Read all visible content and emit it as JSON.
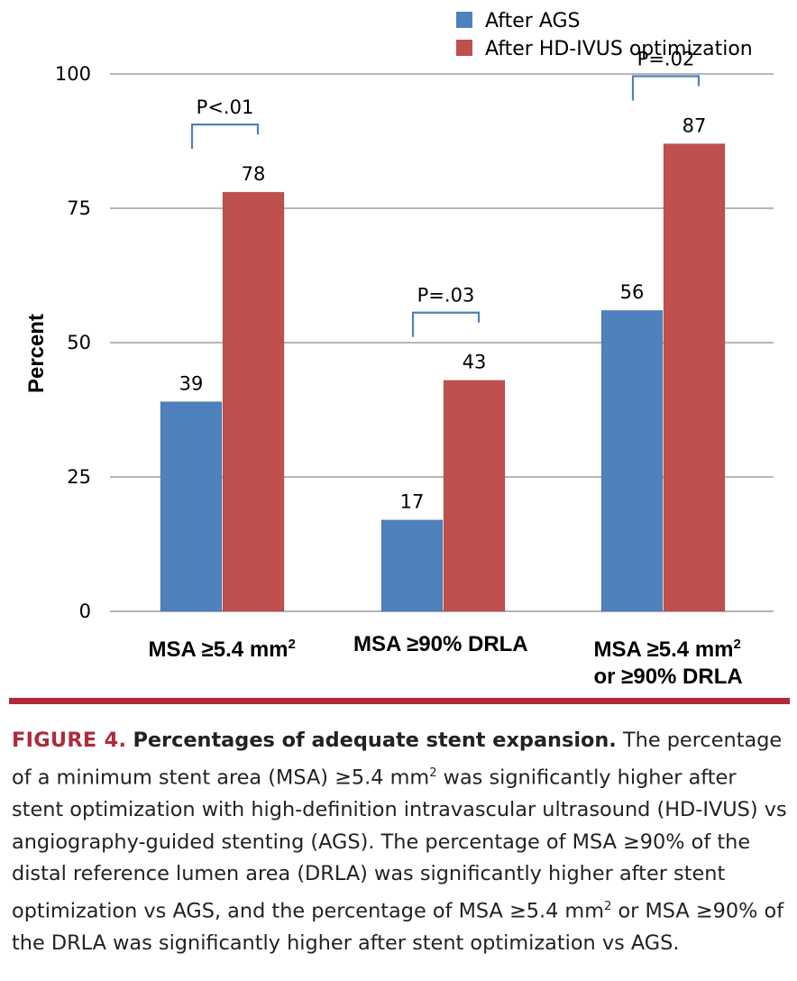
{
  "chart_data": {
    "type": "bar",
    "title": "",
    "xlabel": "",
    "ylabel": "Percent",
    "ylim": [
      0,
      100
    ],
    "yticks": [
      "0",
      "25",
      "50",
      "75",
      "100"
    ],
    "grid": true,
    "legend_position": "top-right",
    "categories": [
      {
        "line1": "MSA ≥5.4 mm",
        "sup": "2",
        "line2": ""
      },
      {
        "line1": "MSA ≥90% DRLA",
        "sup": "",
        "line2": ""
      },
      {
        "line1": "MSA ≥5.4 mm",
        "sup": "2",
        "line2": "or ≥90% DRLA"
      }
    ],
    "series": [
      {
        "name": "After AGS",
        "color": "#4f81bd",
        "values": [
          39,
          17,
          56
        ],
        "labels": [
          "39",
          "17",
          "56"
        ]
      },
      {
        "name": "After HD-IVUS optimization",
        "color": "#c0504d",
        "values": [
          78,
          43,
          87
        ],
        "labels": [
          "78",
          "43",
          "87"
        ]
      }
    ],
    "annotations": [
      "P<.01",
      "P=.03",
      "P=.02"
    ]
  },
  "caption": {
    "figure_label": "FIGURE 4.",
    "title": "Percentages of adequate stent expansion.",
    "text_1": "The percentage of a minimum stent area (MSA) ≥5.4 mm",
    "sup_1": "2",
    "text_2": " was significantly higher after stent optimization with high-definition intravascular ultrasound (HD-IVUS) vs angiography-guided stenting (AGS). The percentage of MSA ≥90% of the distal reference lumen area (DRLA) was significantly higher after stent optimization vs AGS, and the percentage of MSA ≥5.4 mm",
    "sup_2": "2",
    "text_3": " or MSA ≥90% of the DRLA was significantly higher after stent optimization vs AGS."
  }
}
